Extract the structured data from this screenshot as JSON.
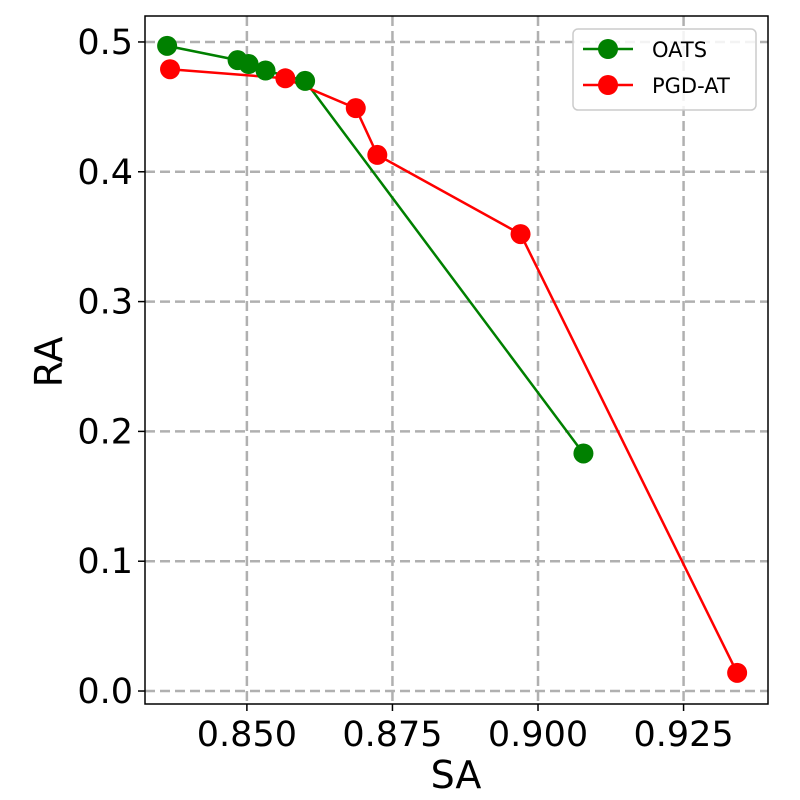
{
  "chart_data": {
    "type": "line",
    "xlabel": "SA",
    "ylabel": "RA",
    "xlim": [
      0.8325,
      0.9395
    ],
    "ylim": [
      -0.01,
      0.52
    ],
    "xticks": [
      "0.850",
      "0.875",
      "0.900",
      "0.925"
    ],
    "xtick_values": [
      0.85,
      0.875,
      0.9,
      0.925
    ],
    "yticks": [
      "0.0",
      "0.1",
      "0.2",
      "0.3",
      "0.4",
      "0.5"
    ],
    "ytick_values": [
      0.0,
      0.1,
      0.2,
      0.3,
      0.4,
      0.5
    ],
    "grid": true,
    "legend_position": "top-right",
    "series": [
      {
        "name": "OATS",
        "color": "#008000",
        "x": [
          0.8363,
          0.8484,
          0.8503,
          0.8532,
          0.86,
          0.9078
        ],
        "y": [
          0.497,
          0.486,
          0.483,
          0.478,
          0.47,
          0.183
        ]
      },
      {
        "name": "PGD-AT",
        "color": "#ff0000",
        "x": [
          0.8368,
          0.8566,
          0.8687,
          0.8724,
          0.897,
          0.9342
        ],
        "y": [
          0.479,
          0.472,
          0.449,
          0.413,
          0.352,
          0.014
        ]
      }
    ]
  }
}
